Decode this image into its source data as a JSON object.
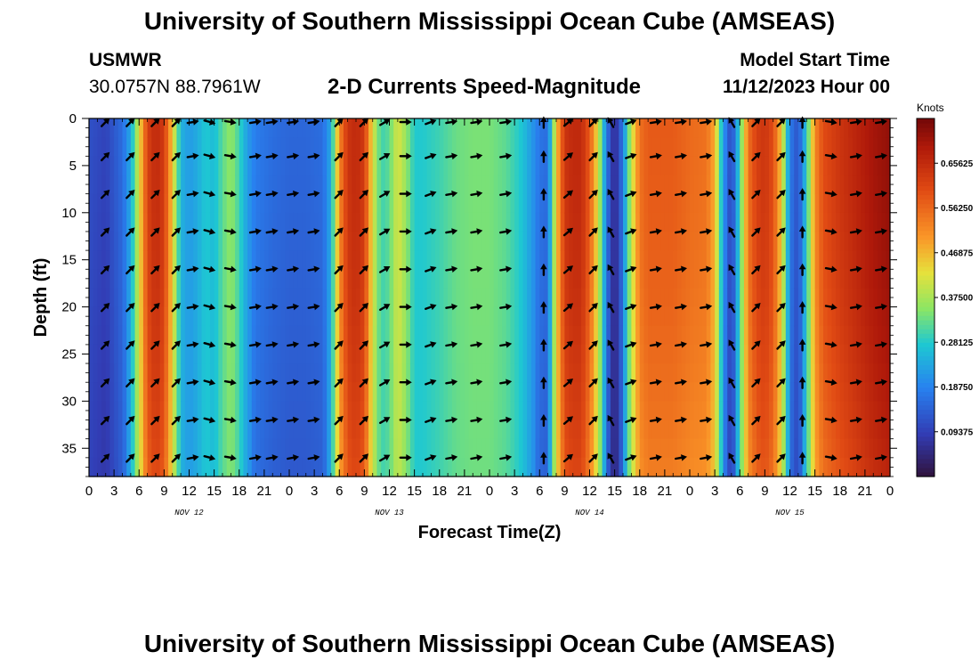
{
  "header": {
    "title": "University of Southern Mississippi Ocean Cube (AMSEAS)",
    "station": "USMWR",
    "coords": "30.0757N  88.7961W",
    "subtitle": "2-D Currents Speed-Magnitude",
    "model_start_label": "Model Start Time",
    "model_start_value": "11/12/2023 Hour 00"
  },
  "footer": {
    "title": "University of Southern Mississippi Ocean Cube (AMSEAS)"
  },
  "chart_data": {
    "type": "heatmap",
    "title": "2-D Currents Speed-Magnitude",
    "xlabel": "Forecast Time(Z)",
    "ylabel": "Depth (ft)",
    "xlim": [
      0,
      96
    ],
    "ylim": [
      0,
      38
    ],
    "x_tick_labels": [
      "0",
      "3",
      "6",
      "9",
      "12",
      "15",
      "18",
      "21",
      "0",
      "3",
      "6",
      "9",
      "12",
      "15",
      "18",
      "21",
      "0",
      "3",
      "6",
      "9",
      "12",
      "15",
      "18",
      "21",
      "0",
      "3",
      "6",
      "9",
      "12",
      "15",
      "18",
      "21",
      "0"
    ],
    "y_ticks": [
      0,
      5,
      10,
      15,
      20,
      25,
      30,
      35
    ],
    "date_labels": [
      {
        "label": "NOV 12",
        "hour": 12
      },
      {
        "label": "NOV 13",
        "hour": 36
      },
      {
        "label": "NOV 14",
        "hour": 60
      },
      {
        "label": "NOV 15",
        "hour": 84
      }
    ],
    "colorbar": {
      "unit": "Knots",
      "min": 0,
      "max": 0.75,
      "tick_labels": [
        "0.09375",
        "0.18750",
        "0.28125",
        "0.37500",
        "0.46875",
        "0.56250",
        "0.65625"
      ],
      "tick_values": [
        0.09375,
        0.1875,
        0.28125,
        0.375,
        0.46875,
        0.5625,
        0.65625
      ]
    },
    "speed_profile_knots": [
      [
        0,
        0.12
      ],
      [
        2,
        0.1
      ],
      [
        4,
        0.16
      ],
      [
        5,
        0.24
      ],
      [
        6,
        0.42
      ],
      [
        7,
        0.62
      ],
      [
        8,
        0.66
      ],
      [
        9,
        0.63
      ],
      [
        10,
        0.45
      ],
      [
        11,
        0.25
      ],
      [
        12,
        0.22
      ],
      [
        13,
        0.24
      ],
      [
        14,
        0.28
      ],
      [
        15,
        0.26
      ],
      [
        16,
        0.32
      ],
      [
        17,
        0.36
      ],
      [
        18,
        0.3
      ],
      [
        19,
        0.22
      ],
      [
        20,
        0.18
      ],
      [
        22,
        0.16
      ],
      [
        24,
        0.15
      ],
      [
        26,
        0.15
      ],
      [
        28,
        0.16
      ],
      [
        29,
        0.24
      ],
      [
        30,
        0.52
      ],
      [
        31,
        0.64
      ],
      [
        32,
        0.66
      ],
      [
        33,
        0.63
      ],
      [
        34,
        0.42
      ],
      [
        35,
        0.3
      ],
      [
        36,
        0.32
      ],
      [
        37,
        0.42
      ],
      [
        38,
        0.36
      ],
      [
        39,
        0.28
      ],
      [
        40,
        0.28
      ],
      [
        42,
        0.3
      ],
      [
        44,
        0.33
      ],
      [
        46,
        0.34
      ],
      [
        48,
        0.34
      ],
      [
        50,
        0.32
      ],
      [
        52,
        0.27
      ],
      [
        53,
        0.22
      ],
      [
        54,
        0.17
      ],
      [
        55,
        0.16
      ],
      [
        56,
        0.45
      ],
      [
        57,
        0.64
      ],
      [
        58,
        0.66
      ],
      [
        59,
        0.66
      ],
      [
        60,
        0.58
      ],
      [
        61,
        0.42
      ],
      [
        62,
        0.18
      ],
      [
        63,
        0.05
      ],
      [
        64,
        0.18
      ],
      [
        65,
        0.4
      ],
      [
        66,
        0.55
      ],
      [
        67,
        0.58
      ],
      [
        68,
        0.58
      ],
      [
        70,
        0.58
      ],
      [
        72,
        0.56
      ],
      [
        74,
        0.55
      ],
      [
        75,
        0.48
      ],
      [
        76,
        0.22
      ],
      [
        77,
        0.1
      ],
      [
        78,
        0.3
      ],
      [
        79,
        0.55
      ],
      [
        80,
        0.62
      ],
      [
        81,
        0.64
      ],
      [
        82,
        0.6
      ],
      [
        83,
        0.45
      ],
      [
        84,
        0.18
      ],
      [
        85,
        0.12
      ],
      [
        86,
        0.28
      ],
      [
        87,
        0.52
      ],
      [
        88,
        0.6
      ],
      [
        90,
        0.64
      ],
      [
        92,
        0.67
      ],
      [
        94,
        0.7
      ],
      [
        96,
        0.72
      ]
    ],
    "arrow_depths_ft": [
      0,
      4,
      8,
      12,
      16,
      20,
      24,
      28,
      32,
      36
    ],
    "arrow_columns": [
      {
        "hour": 2,
        "dir_deg": 135
      },
      {
        "hour": 5,
        "dir_deg": 135
      },
      {
        "hour": 8,
        "dir_deg": 135
      },
      {
        "hour": 10.5,
        "dir_deg": 135
      },
      {
        "hour": 12.5,
        "dir_deg": 100
      },
      {
        "hour": 14.5,
        "dir_deg": 75
      },
      {
        "hour": 17,
        "dir_deg": 80
      },
      {
        "hour": 20,
        "dir_deg": 100
      },
      {
        "hour": 22,
        "dir_deg": 100
      },
      {
        "hour": 24.5,
        "dir_deg": 100
      },
      {
        "hour": 27,
        "dir_deg": 100
      },
      {
        "hour": 30,
        "dir_deg": 135
      },
      {
        "hour": 33,
        "dir_deg": 135
      },
      {
        "hour": 35.5,
        "dir_deg": 120
      },
      {
        "hour": 38,
        "dir_deg": 90
      },
      {
        "hour": 41,
        "dir_deg": 110
      },
      {
        "hour": 43.5,
        "dir_deg": 100
      },
      {
        "hour": 46.5,
        "dir_deg": 100
      },
      {
        "hour": 50,
        "dir_deg": 100
      },
      {
        "hour": 54.5,
        "dir_deg": 180
      },
      {
        "hour": 57.5,
        "dir_deg": 130
      },
      {
        "hour": 60.5,
        "dir_deg": 135
      },
      {
        "hour": 62.5,
        "dir_deg": 210
      },
      {
        "hour": 65,
        "dir_deg": 110
      },
      {
        "hour": 68,
        "dir_deg": 100
      },
      {
        "hour": 71,
        "dir_deg": 100
      },
      {
        "hour": 74,
        "dir_deg": 100
      },
      {
        "hour": 77,
        "dir_deg": 210
      },
      {
        "hour": 80,
        "dir_deg": 135
      },
      {
        "hour": 83,
        "dir_deg": 135
      },
      {
        "hour": 85.5,
        "dir_deg": 180
      },
      {
        "hour": 89,
        "dir_deg": 80
      },
      {
        "hour": 92,
        "dir_deg": 100
      },
      {
        "hour": 95,
        "dir_deg": 100
      }
    ]
  }
}
